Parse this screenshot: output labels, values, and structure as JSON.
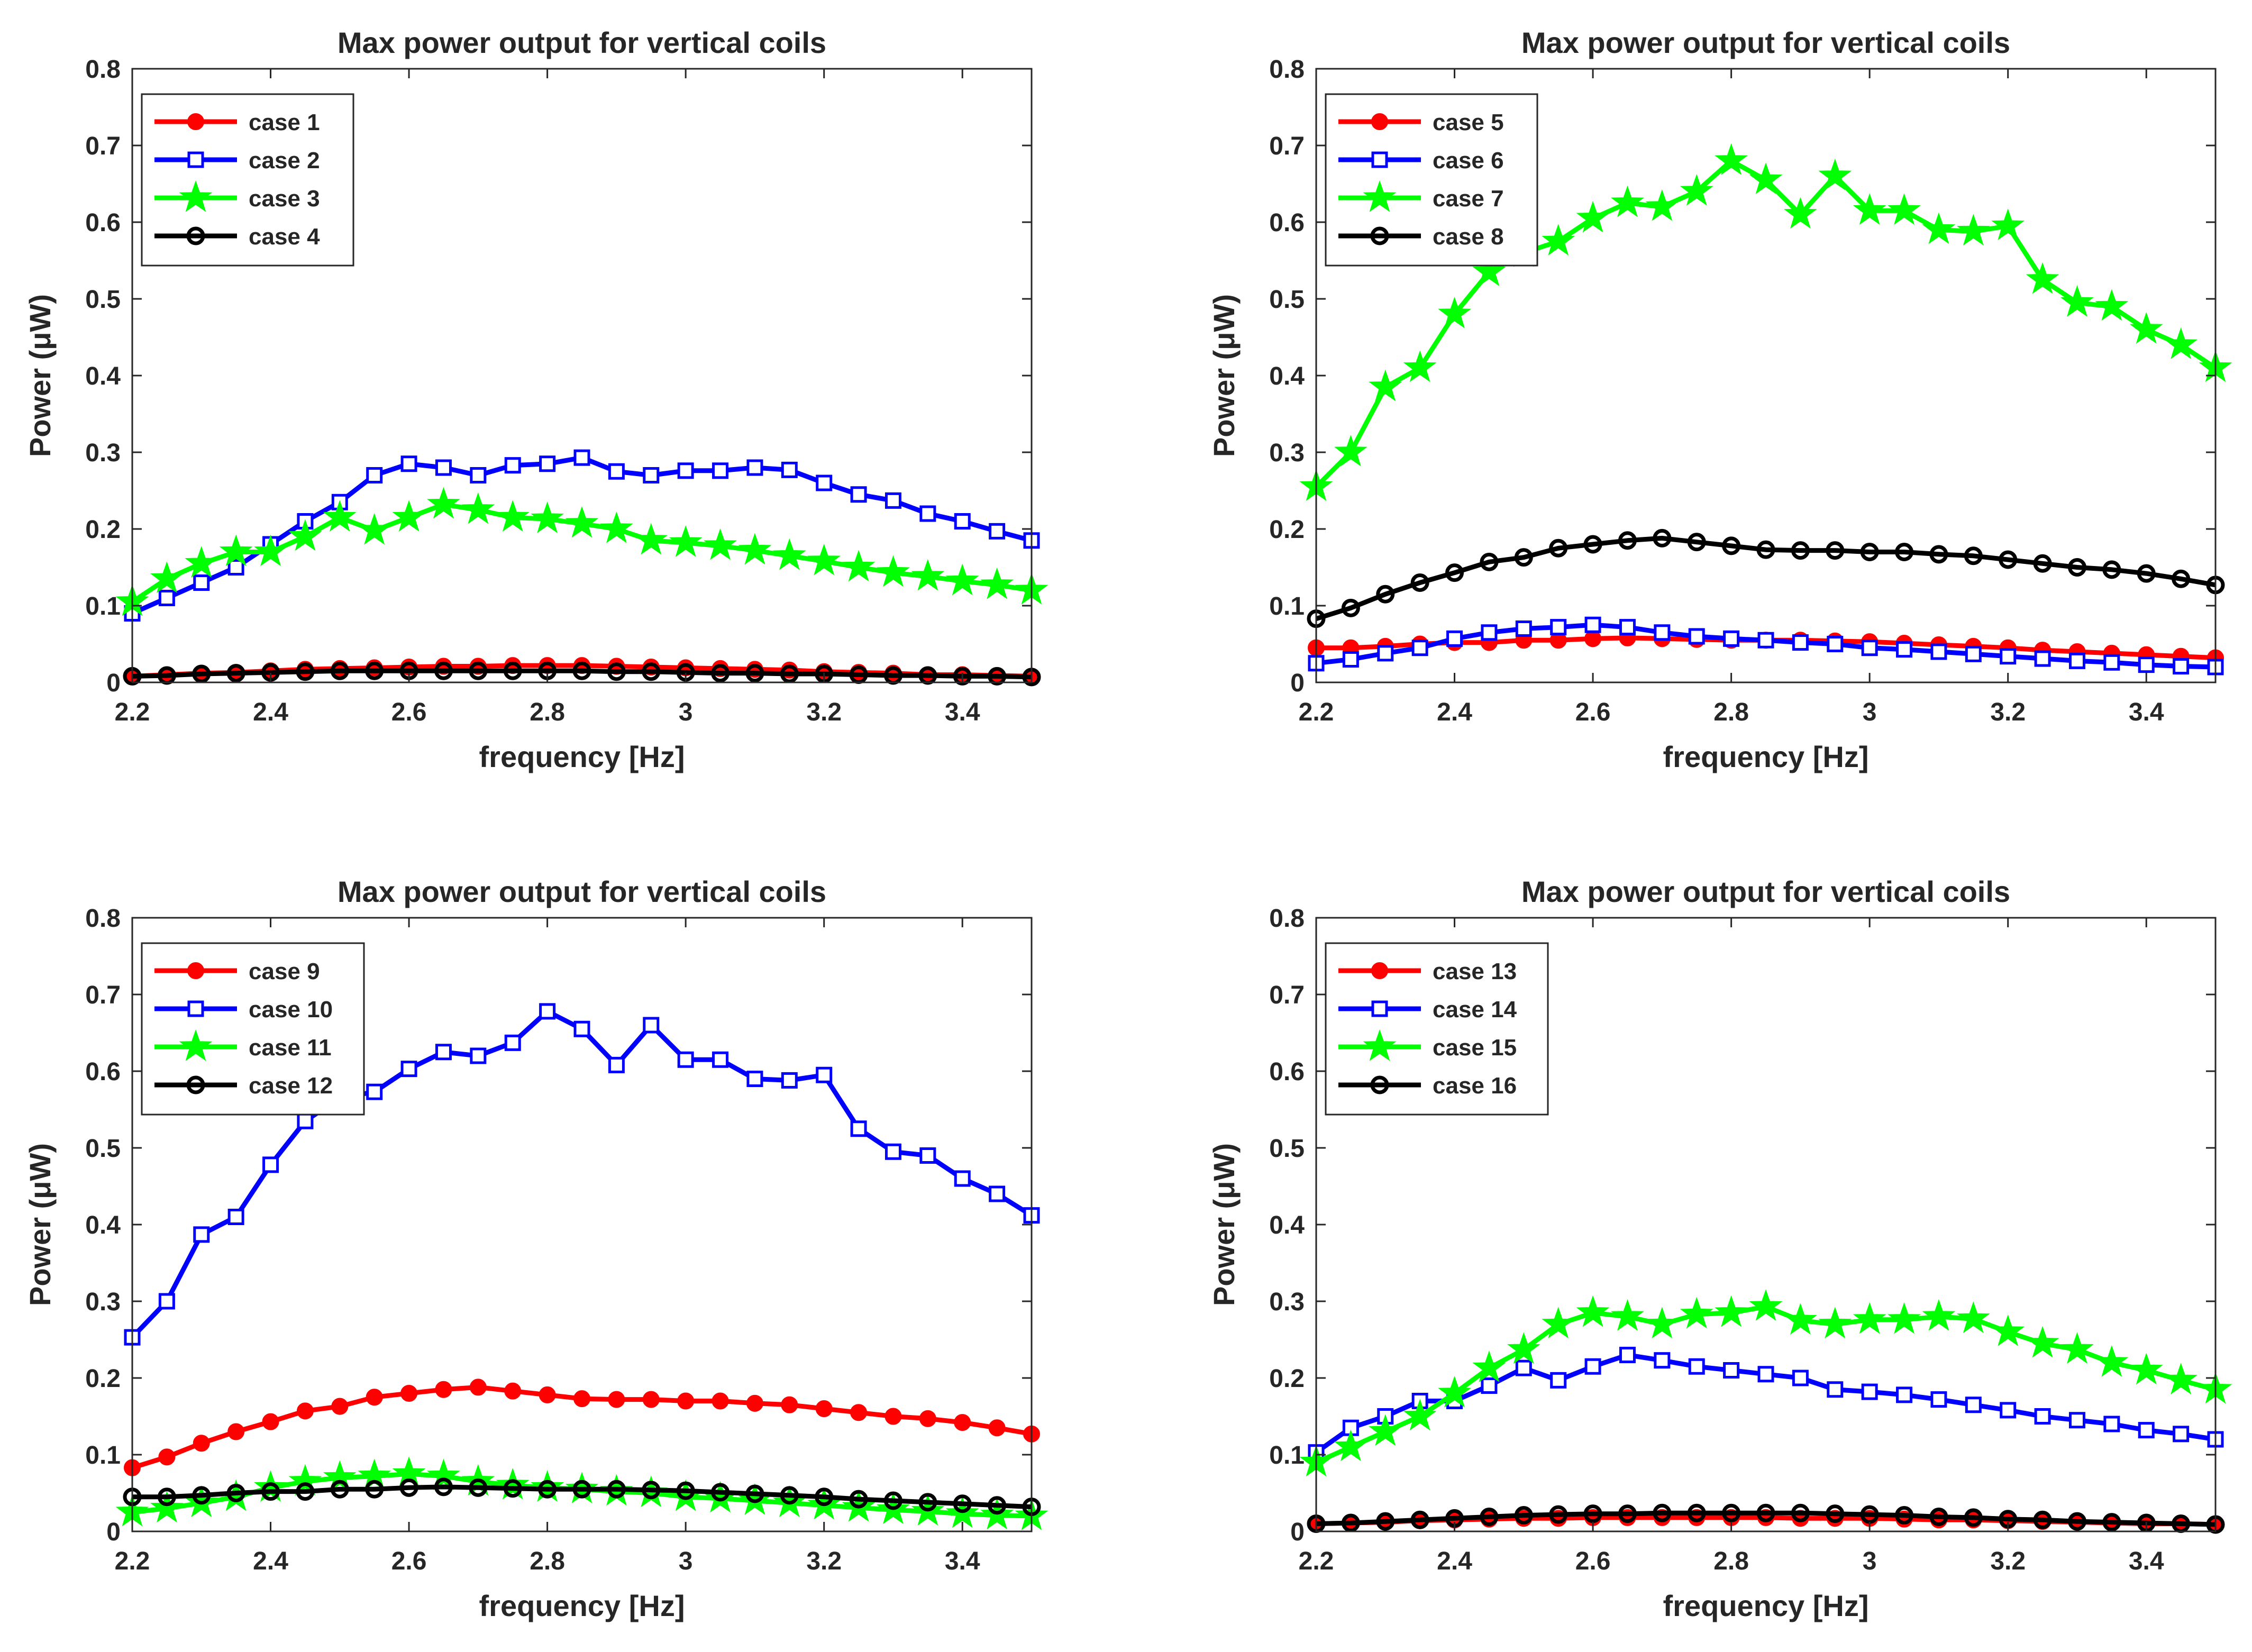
{
  "colors": {
    "red": "#ff0000",
    "blue": "#0000ff",
    "green": "#00ff00",
    "black": "#000000",
    "axis": "#262626"
  },
  "chart_data": [
    {
      "type": "line",
      "title": "Max power output for vertical coils",
      "xlabel": "frequency [Hz]",
      "ylabel": "Power (μW)",
      "xlim": [
        2.2,
        3.5
      ],
      "ylim": [
        0,
        0.8
      ],
      "xticks": [
        "2.2",
        "2.4",
        "2.6",
        "2.8",
        "3",
        "3.2",
        "3.4"
      ],
      "yticks": [
        "0",
        "0.1",
        "0.2",
        "0.3",
        "0.4",
        "0.5",
        "0.6",
        "0.7",
        "0.8"
      ],
      "legend_position": "top-left",
      "x": [
        2.2,
        2.25,
        2.3,
        2.35,
        2.4,
        2.45,
        2.5,
        2.55,
        2.6,
        2.65,
        2.7,
        2.75,
        2.8,
        2.85,
        2.9,
        2.95,
        3.0,
        3.05,
        3.1,
        3.15,
        3.2,
        3.25,
        3.3,
        3.35,
        3.4,
        3.45,
        3.5
      ],
      "series": [
        {
          "name": "case 1",
          "color": "red",
          "marker": "circle",
          "values": [
            0.008,
            0.01,
            0.012,
            0.013,
            0.015,
            0.017,
            0.018,
            0.019,
            0.02,
            0.021,
            0.021,
            0.022,
            0.022,
            0.022,
            0.021,
            0.02,
            0.019,
            0.018,
            0.017,
            0.016,
            0.014,
            0.013,
            0.012,
            0.01,
            0.01,
            0.009,
            0.008
          ]
        },
        {
          "name": "case 2",
          "color": "blue",
          "marker": "square",
          "values": [
            0.09,
            0.11,
            0.13,
            0.15,
            0.18,
            0.21,
            0.235,
            0.27,
            0.285,
            0.28,
            0.27,
            0.283,
            0.285,
            0.293,
            0.275,
            0.27,
            0.276,
            0.276,
            0.28,
            0.277,
            0.26,
            0.245,
            0.237,
            0.22,
            0.21,
            0.197,
            0.185
          ]
        },
        {
          "name": "case 3",
          "color": "green",
          "marker": "star",
          "values": [
            0.105,
            0.135,
            0.155,
            0.17,
            0.17,
            0.19,
            0.215,
            0.198,
            0.215,
            0.232,
            0.225,
            0.215,
            0.213,
            0.207,
            0.2,
            0.185,
            0.182,
            0.178,
            0.172,
            0.165,
            0.158,
            0.15,
            0.143,
            0.138,
            0.132,
            0.127,
            0.12
          ]
        },
        {
          "name": "case 4",
          "color": "black",
          "marker": "circle",
          "values": [
            0.008,
            0.009,
            0.011,
            0.012,
            0.013,
            0.014,
            0.015,
            0.015,
            0.015,
            0.015,
            0.015,
            0.015,
            0.015,
            0.015,
            0.014,
            0.014,
            0.013,
            0.012,
            0.012,
            0.011,
            0.011,
            0.01,
            0.009,
            0.009,
            0.008,
            0.008,
            0.007
          ]
        }
      ]
    },
    {
      "type": "line",
      "title": "Max power output for vertical coils",
      "xlabel": "frequency [Hz]",
      "ylabel": "Power (μW)",
      "xlim": [
        2.2,
        3.5
      ],
      "ylim": [
        0,
        0.8
      ],
      "xticks": [
        "2.2",
        "2.4",
        "2.6",
        "2.8",
        "3",
        "3.2",
        "3.4"
      ],
      "yticks": [
        "0",
        "0.1",
        "0.2",
        "0.3",
        "0.4",
        "0.5",
        "0.6",
        "0.7",
        "0.8"
      ],
      "legend_position": "top-left",
      "x": [
        2.2,
        2.25,
        2.3,
        2.35,
        2.4,
        2.45,
        2.5,
        2.55,
        2.6,
        2.65,
        2.7,
        2.75,
        2.8,
        2.85,
        2.9,
        2.95,
        3.0,
        3.05,
        3.1,
        3.15,
        3.2,
        3.25,
        3.3,
        3.35,
        3.4,
        3.45,
        3.5
      ],
      "series": [
        {
          "name": "case 5",
          "color": "red",
          "marker": "circle",
          "values": [
            0.045,
            0.045,
            0.047,
            0.05,
            0.052,
            0.052,
            0.055,
            0.055,
            0.057,
            0.058,
            0.057,
            0.056,
            0.055,
            0.055,
            0.055,
            0.054,
            0.053,
            0.051,
            0.049,
            0.047,
            0.045,
            0.042,
            0.04,
            0.038,
            0.036,
            0.034,
            0.032
          ]
        },
        {
          "name": "case 6",
          "color": "blue",
          "marker": "square",
          "values": [
            0.025,
            0.03,
            0.038,
            0.045,
            0.057,
            0.065,
            0.07,
            0.072,
            0.075,
            0.072,
            0.065,
            0.06,
            0.057,
            0.055,
            0.052,
            0.05,
            0.045,
            0.043,
            0.04,
            0.037,
            0.034,
            0.031,
            0.028,
            0.026,
            0.023,
            0.021,
            0.02
          ]
        },
        {
          "name": "case 7",
          "color": "green",
          "marker": "star",
          "values": [
            0.255,
            0.3,
            0.385,
            0.41,
            0.48,
            0.535,
            0.56,
            0.575,
            0.605,
            0.625,
            0.62,
            0.64,
            0.68,
            0.655,
            0.61,
            0.66,
            0.615,
            0.615,
            0.59,
            0.588,
            0.595,
            0.525,
            0.495,
            0.49,
            0.46,
            0.44,
            0.41
          ]
        },
        {
          "name": "case 8",
          "color": "black",
          "marker": "circle",
          "values": [
            0.083,
            0.097,
            0.115,
            0.13,
            0.143,
            0.157,
            0.163,
            0.175,
            0.18,
            0.185,
            0.188,
            0.183,
            0.178,
            0.173,
            0.172,
            0.172,
            0.17,
            0.17,
            0.167,
            0.165,
            0.16,
            0.155,
            0.15,
            0.147,
            0.142,
            0.135,
            0.127
          ]
        }
      ]
    },
    {
      "type": "line",
      "title": "Max power output for vertical coils",
      "xlabel": "frequency [Hz]",
      "ylabel": "Power (μW)",
      "xlim": [
        2.2,
        3.5
      ],
      "ylim": [
        0,
        0.8
      ],
      "xticks": [
        "2.2",
        "2.4",
        "2.6",
        "2.8",
        "3",
        "3.2",
        "3.4"
      ],
      "yticks": [
        "0",
        "0.1",
        "0.2",
        "0.3",
        "0.4",
        "0.5",
        "0.6",
        "0.7",
        "0.8"
      ],
      "legend_position": "top-left",
      "x": [
        2.2,
        2.25,
        2.3,
        2.35,
        2.4,
        2.45,
        2.5,
        2.55,
        2.6,
        2.65,
        2.7,
        2.75,
        2.8,
        2.85,
        2.9,
        2.95,
        3.0,
        3.05,
        3.1,
        3.15,
        3.2,
        3.25,
        3.3,
        3.35,
        3.4,
        3.45,
        3.5
      ],
      "series": [
        {
          "name": "case 9",
          "color": "red",
          "marker": "circle",
          "values": [
            0.083,
            0.097,
            0.115,
            0.13,
            0.143,
            0.157,
            0.163,
            0.175,
            0.18,
            0.185,
            0.188,
            0.183,
            0.178,
            0.173,
            0.172,
            0.172,
            0.17,
            0.17,
            0.167,
            0.165,
            0.16,
            0.155,
            0.15,
            0.147,
            0.142,
            0.135,
            0.127
          ]
        },
        {
          "name": "case 10",
          "color": "blue",
          "marker": "square",
          "values": [
            0.253,
            0.3,
            0.387,
            0.41,
            0.478,
            0.535,
            0.565,
            0.573,
            0.603,
            0.625,
            0.62,
            0.637,
            0.678,
            0.655,
            0.608,
            0.66,
            0.615,
            0.615,
            0.59,
            0.588,
            0.595,
            0.525,
            0.495,
            0.49,
            0.46,
            0.44,
            0.412
          ]
        },
        {
          "name": "case 11",
          "color": "green",
          "marker": "star",
          "values": [
            0.025,
            0.03,
            0.037,
            0.045,
            0.057,
            0.065,
            0.07,
            0.072,
            0.075,
            0.072,
            0.065,
            0.06,
            0.057,
            0.055,
            0.052,
            0.05,
            0.045,
            0.043,
            0.04,
            0.037,
            0.034,
            0.031,
            0.028,
            0.026,
            0.023,
            0.021,
            0.02
          ]
        },
        {
          "name": "case 12",
          "color": "black",
          "marker": "circle",
          "values": [
            0.045,
            0.045,
            0.047,
            0.05,
            0.052,
            0.052,
            0.055,
            0.055,
            0.057,
            0.058,
            0.057,
            0.056,
            0.055,
            0.055,
            0.055,
            0.054,
            0.053,
            0.051,
            0.049,
            0.047,
            0.045,
            0.042,
            0.04,
            0.038,
            0.036,
            0.034,
            0.032
          ]
        }
      ]
    },
    {
      "type": "line",
      "title": "Max power output for vertical coils",
      "xlabel": "frequency [Hz]",
      "ylabel": "Power (μW)",
      "xlim": [
        2.2,
        3.5
      ],
      "ylim": [
        0,
        0.8
      ],
      "xticks": [
        "2.2",
        "2.4",
        "2.6",
        "2.8",
        "3",
        "3.2",
        "3.4"
      ],
      "yticks": [
        "0",
        "0.1",
        "0.2",
        "0.3",
        "0.4",
        "0.5",
        "0.6",
        "0.7",
        "0.8"
      ],
      "legend_position": "top-left",
      "x": [
        2.2,
        2.25,
        2.3,
        2.35,
        2.4,
        2.45,
        2.5,
        2.55,
        2.6,
        2.65,
        2.7,
        2.75,
        2.8,
        2.85,
        2.9,
        2.95,
        3.0,
        3.05,
        3.1,
        3.15,
        3.2,
        3.25,
        3.3,
        3.35,
        3.4,
        3.45,
        3.5
      ],
      "series": [
        {
          "name": "case 13",
          "color": "red",
          "marker": "circle",
          "values": [
            0.01,
            0.011,
            0.012,
            0.014,
            0.015,
            0.016,
            0.017,
            0.017,
            0.018,
            0.018,
            0.018,
            0.018,
            0.018,
            0.018,
            0.017,
            0.017,
            0.017,
            0.016,
            0.015,
            0.015,
            0.014,
            0.013,
            0.012,
            0.011,
            0.01,
            0.01,
            0.009
          ]
        },
        {
          "name": "case 14",
          "color": "blue",
          "marker": "square",
          "values": [
            0.103,
            0.135,
            0.15,
            0.17,
            0.17,
            0.19,
            0.213,
            0.197,
            0.215,
            0.23,
            0.223,
            0.215,
            0.21,
            0.205,
            0.2,
            0.185,
            0.182,
            0.178,
            0.172,
            0.165,
            0.158,
            0.15,
            0.145,
            0.14,
            0.132,
            0.127,
            0.12
          ]
        },
        {
          "name": "case 15",
          "color": "green",
          "marker": "star",
          "values": [
            0.09,
            0.11,
            0.13,
            0.15,
            0.18,
            0.213,
            0.237,
            0.27,
            0.285,
            0.28,
            0.27,
            0.283,
            0.285,
            0.293,
            0.275,
            0.27,
            0.276,
            0.276,
            0.28,
            0.277,
            0.26,
            0.245,
            0.237,
            0.22,
            0.21,
            0.197,
            0.185
          ]
        },
        {
          "name": "case 16",
          "color": "black",
          "marker": "circle",
          "values": [
            0.01,
            0.011,
            0.013,
            0.015,
            0.017,
            0.019,
            0.021,
            0.022,
            0.023,
            0.023,
            0.024,
            0.024,
            0.024,
            0.024,
            0.024,
            0.023,
            0.022,
            0.021,
            0.019,
            0.018,
            0.016,
            0.015,
            0.013,
            0.012,
            0.011,
            0.01,
            0.009
          ]
        }
      ]
    }
  ]
}
